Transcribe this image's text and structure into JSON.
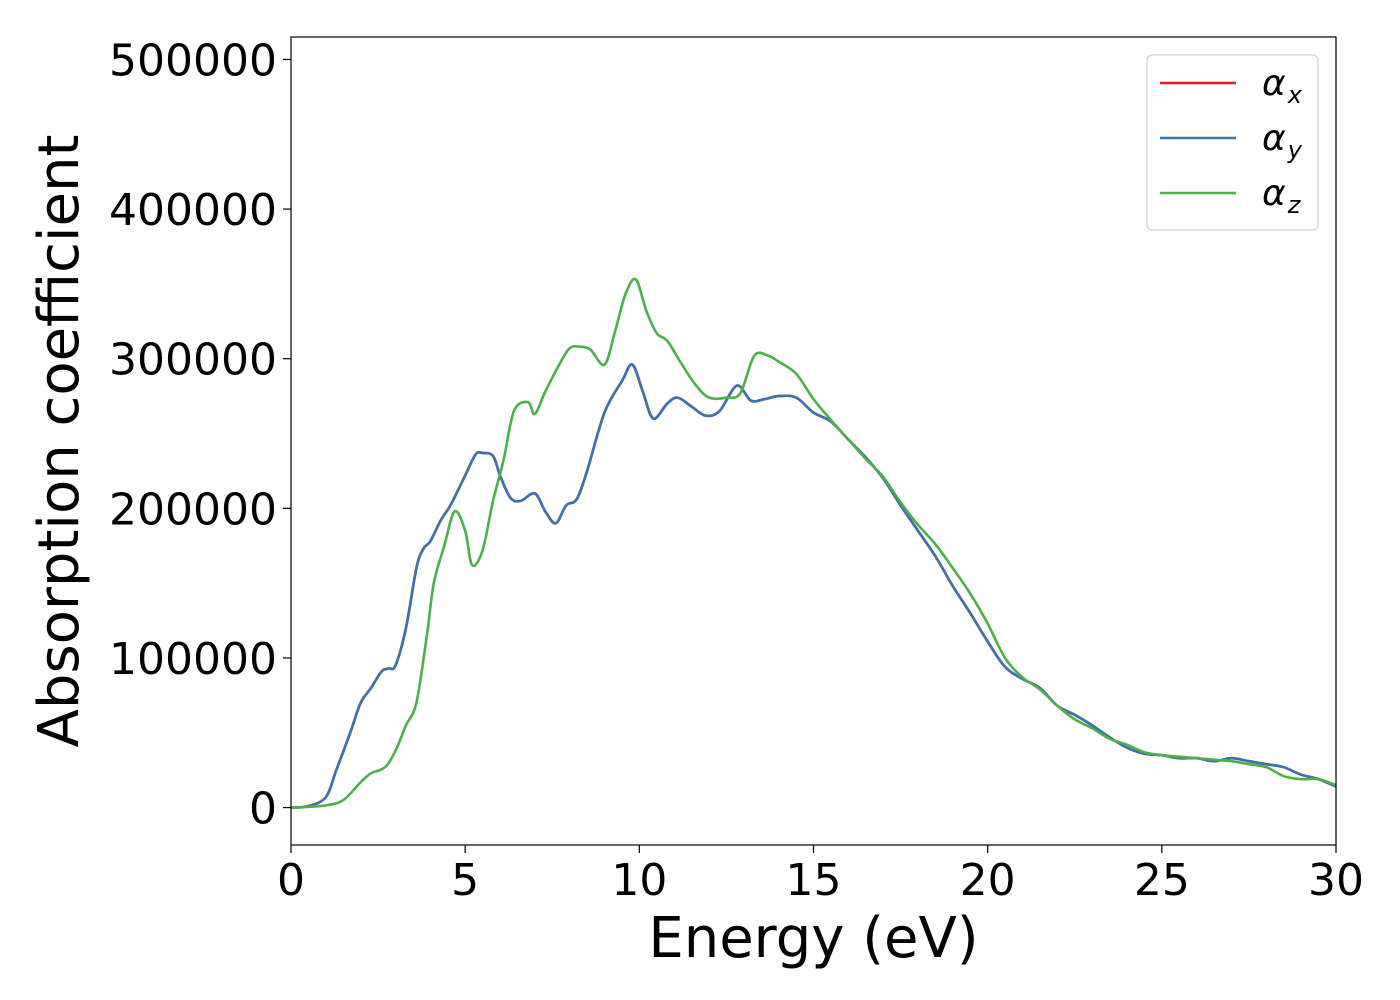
{
  "chart_data": {
    "type": "line",
    "title": "",
    "xlabel": "Energy (eV)",
    "ylabel": "Absorption coefficient",
    "xlim": [
      0,
      30
    ],
    "ylim": [
      -25000,
      515000
    ],
    "xticks": [
      "0",
      "5",
      "10",
      "15",
      "20",
      "25",
      "30"
    ],
    "yticks": [
      "0",
      "100000",
      "200000",
      "300000",
      "400000",
      "500000"
    ],
    "grid": false,
    "legend_position": "top-right",
    "series": [
      {
        "name_main": "α",
        "name_sub": "x",
        "color": "#e41a1c",
        "x": [
          0,
          0.5,
          1.0,
          1.3,
          1.7,
          2.0,
          2.3,
          2.6,
          2.8,
          3.0,
          3.3,
          3.6,
          3.8,
          4.0,
          4.3,
          4.6,
          5.0,
          5.3,
          5.5,
          5.8,
          6.0,
          6.3,
          6.6,
          7.0,
          7.3,
          7.6,
          7.9,
          8.2,
          8.5,
          9.0,
          9.5,
          9.8,
          10.1,
          10.4,
          10.8,
          11.1,
          11.5,
          11.9,
          12.3,
          12.8,
          13.2,
          13.6,
          14.0,
          14.5,
          15.0,
          15.5,
          16.0,
          16.5,
          17.0,
          17.5,
          18.0,
          18.5,
          19.0,
          19.5,
          20.0,
          20.5,
          21.0,
          21.5,
          22.0,
          22.5,
          23.0,
          23.5,
          24.0,
          24.5,
          25.0,
          25.5,
          26.0,
          26.5,
          27.0,
          27.5,
          28.0,
          28.5,
          29.0,
          29.5,
          30.0
        ],
        "y": [
          0,
          1000,
          7000,
          25000,
          50000,
          70000,
          80000,
          91000,
          93000,
          95000,
          120000,
          160000,
          173000,
          178000,
          192000,
          203000,
          222000,
          236000,
          237000,
          235000,
          222000,
          207000,
          205000,
          210000,
          198000,
          190000,
          202000,
          206000,
          225000,
          264000,
          285000,
          296000,
          278000,
          260000,
          270000,
          274000,
          268000,
          262000,
          265000,
          282000,
          272000,
          273000,
          275000,
          274000,
          264000,
          258000,
          246000,
          234000,
          220000,
          202000,
          185000,
          168000,
          148000,
          130000,
          111000,
          94000,
          86000,
          80000,
          68000,
          62000,
          55000,
          47000,
          40000,
          36000,
          35000,
          33000,
          33000,
          31000,
          33000,
          31000,
          29000,
          27000,
          22000,
          19000,
          14000
        ]
      },
      {
        "name_main": "α",
        "name_sub": "y",
        "color": "#3a73b0",
        "x": [
          0,
          0.5,
          1.0,
          1.3,
          1.7,
          2.0,
          2.3,
          2.6,
          2.8,
          3.0,
          3.3,
          3.6,
          3.8,
          4.0,
          4.3,
          4.6,
          5.0,
          5.3,
          5.5,
          5.8,
          6.0,
          6.3,
          6.6,
          7.0,
          7.3,
          7.6,
          7.9,
          8.2,
          8.5,
          9.0,
          9.5,
          9.8,
          10.1,
          10.4,
          10.8,
          11.1,
          11.5,
          11.9,
          12.3,
          12.8,
          13.2,
          13.6,
          14.0,
          14.5,
          15.0,
          15.5,
          16.0,
          16.5,
          17.0,
          17.5,
          18.0,
          18.5,
          19.0,
          19.5,
          20.0,
          20.5,
          21.0,
          21.5,
          22.0,
          22.5,
          23.0,
          23.5,
          24.0,
          24.5,
          25.0,
          25.5,
          26.0,
          26.5,
          27.0,
          27.5,
          28.0,
          28.5,
          29.0,
          29.5,
          30.0
        ],
        "y": [
          0,
          1000,
          7000,
          25000,
          50000,
          70000,
          80000,
          91000,
          93000,
          95000,
          120000,
          160000,
          173000,
          178000,
          192000,
          203000,
          222000,
          236000,
          237000,
          235000,
          222000,
          207000,
          205000,
          210000,
          198000,
          190000,
          202000,
          206000,
          225000,
          264000,
          285000,
          296000,
          278000,
          260000,
          270000,
          274000,
          268000,
          262000,
          265000,
          282000,
          272000,
          273000,
          275000,
          274000,
          264000,
          258000,
          246000,
          234000,
          220000,
          202000,
          185000,
          168000,
          148000,
          130000,
          111000,
          94000,
          86000,
          80000,
          68000,
          62000,
          55000,
          47000,
          40000,
          36000,
          35000,
          33000,
          33000,
          31000,
          33000,
          31000,
          29000,
          27000,
          22000,
          19000,
          14000
        ]
      },
      {
        "name_main": "α",
        "name_sub": "z",
        "color": "#4daf4a",
        "x": [
          0,
          0.5,
          1.0,
          1.5,
          2.0,
          2.3,
          2.7,
          3.0,
          3.3,
          3.6,
          3.9,
          4.1,
          4.4,
          4.7,
          5.0,
          5.2,
          5.5,
          5.8,
          6.1,
          6.4,
          6.8,
          7.0,
          7.3,
          7.7,
          8.0,
          8.3,
          8.6,
          9.0,
          9.3,
          9.6,
          9.9,
          10.2,
          10.5,
          10.8,
          11.2,
          11.6,
          12.0,
          12.5,
          12.9,
          13.3,
          13.7,
          14.0,
          14.5,
          15.0,
          15.5,
          16.0,
          16.5,
          17.0,
          17.5,
          18.0,
          18.5,
          19.0,
          19.5,
          20.0,
          20.5,
          21.0,
          21.5,
          22.0,
          22.5,
          23.0,
          23.5,
          24.0,
          24.5,
          25.0,
          25.5,
          26.0,
          26.5,
          27.0,
          27.5,
          28.0,
          28.5,
          29.0,
          29.5,
          30.0
        ],
        "y": [
          0,
          500,
          1500,
          5000,
          17000,
          23000,
          27000,
          38000,
          55000,
          70000,
          115000,
          150000,
          175000,
          198000,
          185000,
          162000,
          172000,
          205000,
          232000,
          265000,
          271000,
          263000,
          278000,
          296000,
          307000,
          308000,
          306000,
          296000,
          318000,
          343000,
          353000,
          332000,
          317000,
          312000,
          297000,
          283000,
          274000,
          274000,
          277000,
          302000,
          302000,
          298000,
          290000,
          273000,
          259000,
          246000,
          233000,
          221000,
          204000,
          189000,
          176000,
          160000,
          143000,
          123000,
          100000,
          87000,
          79000,
          68000,
          59000,
          53000,
          46000,
          42000,
          37000,
          35000,
          34000,
          33000,
          32000,
          31000,
          29000,
          27000,
          21000,
          19000,
          19000,
          15000
        ]
      }
    ]
  }
}
